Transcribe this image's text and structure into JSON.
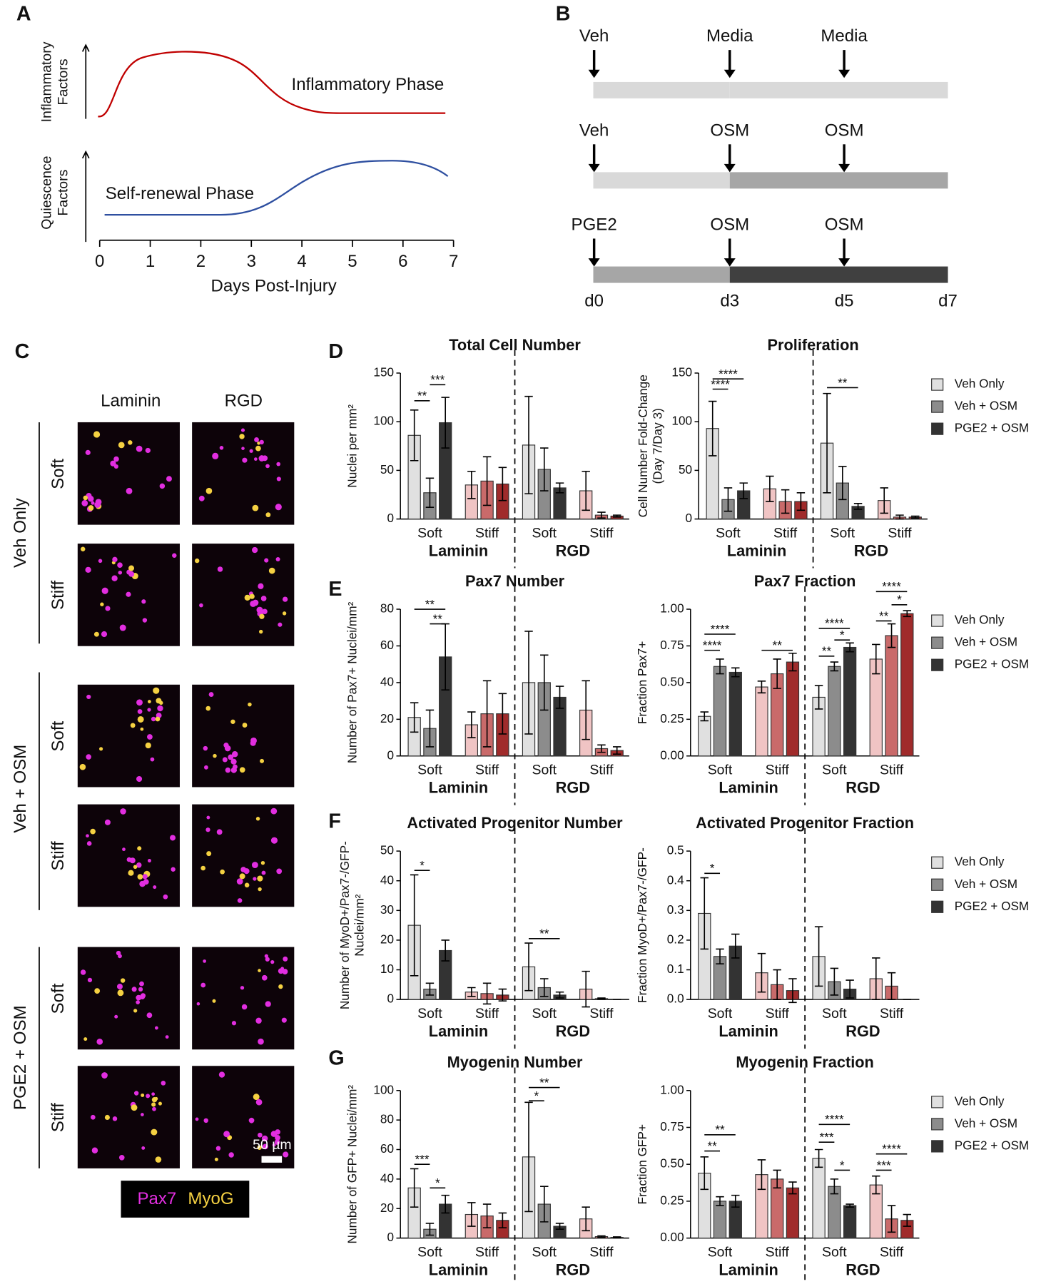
{
  "panel_labels": [
    "A",
    "B",
    "C",
    "D",
    "E",
    "F",
    "G"
  ],
  "panel_a": {
    "ylabels": [
      [
        "Inflammatory",
        "Factors"
      ],
      [
        "Quiescence",
        "Factors"
      ]
    ],
    "phases": [
      "Inflammatory Phase",
      "Self-renewal Phase"
    ],
    "xlabel": "Days Post-Injury",
    "xlim": [
      0,
      7
    ],
    "xticks": [
      0,
      1,
      2,
      3,
      4,
      5,
      6,
      7
    ]
  },
  "panel_b": {
    "rows": [
      [
        "Veh",
        "Media",
        "Media"
      ],
      [
        "Veh",
        "OSM",
        "OSM"
      ],
      [
        "PGE2",
        "OSM",
        "OSM"
      ]
    ],
    "days": [
      "d0",
      "d3",
      "d5",
      "d7"
    ]
  },
  "panel_c": {
    "columns": [
      "Laminin",
      "RGD"
    ],
    "groups": [
      {
        "name": "Veh Only",
        "rows": [
          "Soft",
          "Stiff"
        ]
      },
      {
        "name": "Veh + OSM",
        "rows": [
          "Soft",
          "Stiff"
        ]
      },
      {
        "name": "PGE2 + OSM",
        "rows": [
          "Soft",
          "Stiff"
        ]
      }
    ],
    "scale_bar": "50 µm",
    "stains": [
      "Pax7",
      "MyoG"
    ]
  },
  "chart_data": [
    {
      "type": "bar",
      "title": "Total Cell Number",
      "ylabel": [
        "Nuclei per mm²"
      ],
      "categories": [
        "Soft",
        "Stiff",
        "Soft",
        "Stiff"
      ],
      "groups": [
        "Laminin",
        "RGD"
      ],
      "ylim": [
        0,
        150
      ],
      "yticks": [
        0,
        50,
        100,
        150
      ],
      "series": [
        {
          "name": "Veh Only",
          "color": "#e0e0e0",
          "stiff_color": "#f0c4c4",
          "values": [
            86,
            35,
            76,
            29
          ],
          "errors": [
            26,
            14,
            50,
            20
          ]
        },
        {
          "name": "Veh + OSM",
          "color": "#8c8c8c",
          "stiff_color": "#c96a6a",
          "values": [
            27,
            39,
            51,
            4
          ],
          "errors": [
            15,
            25,
            22,
            3
          ]
        },
        {
          "name": "PGE2 + OSM",
          "color": "#333333",
          "stiff_color": "#a02b2b",
          "values": [
            99,
            36,
            32,
            3
          ],
          "errors": [
            26,
            17,
            5,
            1
          ]
        }
      ],
      "annotations": [
        "**",
        "***"
      ]
    },
    {
      "type": "bar",
      "title": "Proliferation",
      "ylabel": [
        "Cell Number Fold-Change",
        "(Day 7/Day 3)"
      ],
      "categories": [
        "Soft",
        "Stiff",
        "Soft",
        "Stiff"
      ],
      "groups": [
        "Laminin",
        "RGD"
      ],
      "ylim": [
        0,
        150
      ],
      "yticks": [
        0,
        50,
        100,
        150
      ],
      "series": [
        {
          "name": "Veh Only",
          "color": "#e0e0e0",
          "stiff_color": "#f0c4c4",
          "values": [
            93,
            31,
            78,
            19
          ],
          "errors": [
            28,
            13,
            51,
            13
          ]
        },
        {
          "name": "Veh + OSM",
          "color": "#8c8c8c",
          "stiff_color": "#c96a6a",
          "values": [
            20,
            18,
            37,
            2
          ],
          "errors": [
            12,
            12,
            17,
            2
          ]
        },
        {
          "name": "PGE2 + OSM",
          "color": "#333333",
          "stiff_color": "#a02b2b",
          "values": [
            29,
            18,
            13,
            2
          ],
          "errors": [
            8,
            9,
            3,
            1
          ]
        }
      ],
      "annotations": [
        "****",
        "****",
        "**"
      ],
      "legend": "right"
    },
    {
      "type": "bar",
      "title": "Pax7 Number",
      "ylabel": [
        "Number of Pax7+ Nuclei/mm²"
      ],
      "categories": [
        "Soft",
        "Stiff",
        "Soft",
        "Stiff"
      ],
      "groups": [
        "Laminin",
        "RGD"
      ],
      "ylim": [
        0,
        80
      ],
      "yticks": [
        0,
        20,
        40,
        60,
        80
      ],
      "series": [
        {
          "name": "Veh Only",
          "color": "#e0e0e0",
          "stiff_color": "#f0c4c4",
          "values": [
            21,
            17,
            40,
            25
          ],
          "errors": [
            8,
            7,
            28,
            16
          ]
        },
        {
          "name": "Veh + OSM",
          "color": "#8c8c8c",
          "stiff_color": "#c96a6a",
          "values": [
            15,
            23,
            40,
            4
          ],
          "errors": [
            10,
            18,
            15,
            2
          ]
        },
        {
          "name": "PGE2 + OSM",
          "color": "#333333",
          "stiff_color": "#a02b2b",
          "values": [
            54,
            23,
            32,
            3
          ],
          "errors": [
            18,
            11,
            6,
            2
          ]
        }
      ],
      "annotations": [
        "**",
        "**"
      ]
    },
    {
      "type": "bar",
      "title": "Pax7 Fraction",
      "ylabel": [
        "Fraction Pax7+"
      ],
      "categories": [
        "Soft",
        "Stiff",
        "Soft",
        "Stiff"
      ],
      "groups": [
        "Laminin",
        "RGD"
      ],
      "ylim": [
        0,
        1
      ],
      "yticks": [
        {
          "value": 0,
          "label": "0.00"
        },
        0.25,
        {
          "value": 0.5,
          "label": "0.50"
        },
        0.75,
        {
          "value": 1,
          "label": "1.00"
        }
      ],
      "series": [
        {
          "name": "Veh Only",
          "color": "#e0e0e0",
          "stiff_color": "#f0c4c4",
          "values": [
            0.27,
            0.47,
            0.4,
            0.66
          ],
          "errors": [
            0.03,
            0.04,
            0.08,
            0.1
          ]
        },
        {
          "name": "Veh + OSM",
          "color": "#8c8c8c",
          "stiff_color": "#c96a6a",
          "values": [
            0.61,
            0.56,
            0.61,
            0.82
          ],
          "errors": [
            0.05,
            0.1,
            0.03,
            0.08
          ]
        },
        {
          "name": "PGE2 + OSM",
          "color": "#333333",
          "stiff_color": "#a02b2b",
          "values": [
            0.57,
            0.64,
            0.74,
            0.97
          ],
          "errors": [
            0.03,
            0.06,
            0.03,
            0.02
          ]
        }
      ],
      "annotations": [
        "****",
        "****",
        "**",
        "****",
        "*",
        "**",
        "****",
        "*",
        "**"
      ],
      "legend": "right"
    },
    {
      "type": "bar",
      "title": "Activated Progenitor Number",
      "ylabel": [
        "Number of MyoD+/Pax7-/GFP-",
        "Nuclei/mm²"
      ],
      "categories": [
        "Soft",
        "Stiff",
        "Soft",
        "Stiff"
      ],
      "groups": [
        "Laminin",
        "RGD"
      ],
      "ylim": [
        0,
        50
      ],
      "yticks": [
        0,
        10,
        20,
        30,
        40,
        50
      ],
      "series": [
        {
          "name": "Veh Only",
          "color": "#e0e0e0",
          "stiff_color": "#f0c4c4",
          "values": [
            25,
            2.5,
            11,
            3.5
          ],
          "errors": [
            17,
            1.5,
            8,
            6
          ]
        },
        {
          "name": "Veh + OSM",
          "color": "#8c8c8c",
          "stiff_color": "#c96a6a",
          "values": [
            3.5,
            2,
            4,
            0.3
          ],
          "errors": [
            2,
            3.5,
            3,
            0.2
          ]
        },
        {
          "name": "PGE2 + OSM",
          "color": "#333333",
          "stiff_color": "#a02b2b",
          "values": [
            16.5,
            1.5,
            1.5,
            0
          ],
          "errors": [
            3.5,
            2,
            1,
            0
          ]
        }
      ],
      "annotations": [
        "*",
        "**"
      ]
    },
    {
      "type": "bar",
      "title": "Activated Progenitor Fraction",
      "ylabel": [
        "Fraction MyoD+/Pax7-/GFP-"
      ],
      "categories": [
        "Soft",
        "Stiff",
        "Soft",
        "Stiff"
      ],
      "groups": [
        "Laminin",
        "RGD"
      ],
      "ylim": [
        0,
        0.5
      ],
      "yticks": [
        {
          "value": 0,
          "label": "0.0"
        },
        0.1,
        0.2,
        0.3,
        0.4,
        0.5
      ],
      "series": [
        {
          "name": "Veh Only",
          "color": "#e0e0e0",
          "stiff_color": "#f0c4c4",
          "values": [
            0.29,
            0.09,
            0.145,
            0.07
          ],
          "errors": [
            0.12,
            0.065,
            0.1,
            0.07
          ]
        },
        {
          "name": "Veh + OSM",
          "color": "#8c8c8c",
          "stiff_color": "#c96a6a",
          "values": [
            0.145,
            0.05,
            0.06,
            0.045
          ],
          "errors": [
            0.025,
            0.05,
            0.045,
            0.045
          ]
        },
        {
          "name": "PGE2 + OSM",
          "color": "#333333",
          "stiff_color": "#a02b2b",
          "values": [
            0.18,
            0.03,
            0.035,
            0
          ],
          "errors": [
            0.04,
            0.04,
            0.03,
            0
          ]
        }
      ],
      "annotations": [
        "*"
      ],
      "legend": "right"
    },
    {
      "type": "bar",
      "title": "Myogenin Number",
      "ylabel": [
        "Number of GFP+ Nuclei/mm²"
      ],
      "categories": [
        "Soft",
        "Stiff",
        "Soft",
        "Stiff"
      ],
      "groups": [
        "Laminin",
        "RGD"
      ],
      "ylim": [
        0,
        100
      ],
      "yticks": [
        0,
        20,
        40,
        60,
        80,
        100
      ],
      "series": [
        {
          "name": "Veh Only",
          "color": "#e0e0e0",
          "stiff_color": "#f0c4c4",
          "values": [
            34,
            16,
            55,
            13
          ],
          "errors": [
            13,
            8,
            37,
            8
          ]
        },
        {
          "name": "Veh + OSM",
          "color": "#8c8c8c",
          "stiff_color": "#c96a6a",
          "values": [
            6,
            15,
            23,
            1
          ],
          "errors": [
            4,
            8,
            12,
            0.5
          ]
        },
        {
          "name": "PGE2 + OSM",
          "color": "#333333",
          "stiff_color": "#a02b2b",
          "values": [
            23,
            12,
            8,
            0.5
          ],
          "errors": [
            6,
            5,
            2,
            0.3
          ]
        }
      ],
      "annotations": [
        "***",
        "*",
        "*",
        "**"
      ]
    },
    {
      "type": "bar",
      "title": "Myogenin Fraction",
      "ylabel": [
        "Fraction GFP+"
      ],
      "categories": [
        "Soft",
        "Stiff",
        "Soft",
        "Stiff"
      ],
      "groups": [
        "Laminin",
        "RGD"
      ],
      "ylim": [
        0,
        1
      ],
      "yticks": [
        {
          "value": 0,
          "label": "0.00"
        },
        0.25,
        {
          "value": 0.5,
          "label": "0.50"
        },
        0.75,
        {
          "value": 1,
          "label": "1.00"
        }
      ],
      "series": [
        {
          "name": "Veh Only",
          "color": "#e0e0e0",
          "stiff_color": "#f0c4c4",
          "values": [
            0.44,
            0.43,
            0.54,
            0.36
          ],
          "errors": [
            0.11,
            0.1,
            0.06,
            0.06
          ]
        },
        {
          "name": "Veh + OSM",
          "color": "#8c8c8c",
          "stiff_color": "#c96a6a",
          "values": [
            0.25,
            0.4,
            0.35,
            0.13
          ],
          "errors": [
            0.03,
            0.06,
            0.05,
            0.09
          ]
        },
        {
          "name": "PGE2 + OSM",
          "color": "#333333",
          "stiff_color": "#a02b2b",
          "values": [
            0.25,
            0.34,
            0.22,
            0.12
          ],
          "errors": [
            0.04,
            0.04,
            0.01,
            0.04
          ]
        }
      ],
      "annotations": [
        "**",
        "**",
        "****",
        "***",
        "*",
        "****",
        "***"
      ],
      "legend": "right"
    }
  ]
}
